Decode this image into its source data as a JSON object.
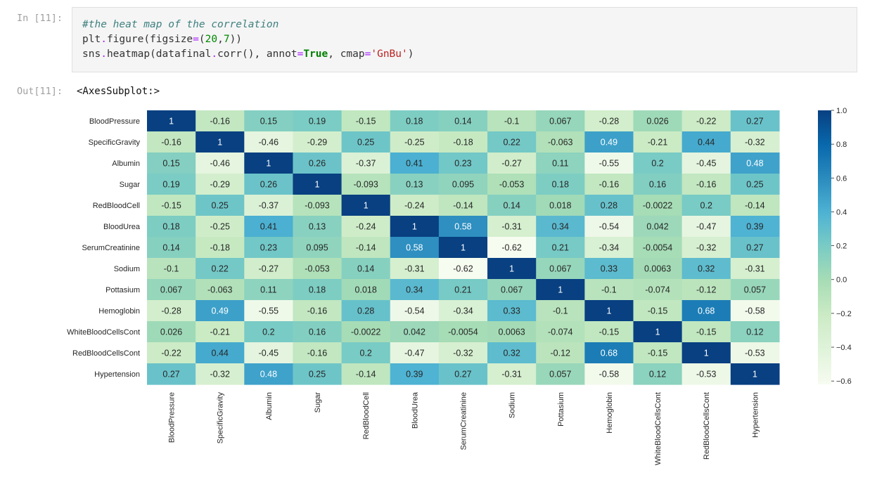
{
  "in_prompt": "In [11]:",
  "out_prompt": "Out[11]:",
  "code": {
    "comment": "#the heat map of the correlation",
    "line2": {
      "obj": "plt",
      "dot": ".",
      "fn": "figure(figsize",
      "eq": "=",
      "open": "(",
      "n1": "20",
      "comma": ",",
      "n2": "7",
      "close": "))"
    },
    "line3": {
      "pre": "sns",
      "dot": ".",
      "fn": "heatmap(datafinal",
      "dot2": ".",
      "mid": "corr(), annot",
      "eq1": "=",
      "kw": "True",
      "mid2": ", cmap",
      "eq2": "=",
      "str": "'GnBu'",
      "end": ")"
    }
  },
  "output_text": "<AxesSubplot:>",
  "chart_data": {
    "type": "heatmap",
    "labels": [
      "BloodPressure",
      "SpecificGravity",
      "Albumin",
      "Sugar",
      "RedBloodCell",
      "BloodUrea",
      "SerumCreatinine",
      "Sodium",
      "Pottasium",
      "Hemoglobin",
      "WhiteBloodCellsCont",
      "RedBloodCellsCont",
      "Hypertension"
    ],
    "annotations": [
      [
        "1",
        "-0.16",
        "0.15",
        "0.19",
        "-0.15",
        "0.18",
        "0.14",
        "-0.1",
        "0.067",
        "-0.28",
        "0.026",
        "-0.22",
        "0.27"
      ],
      [
        "-0.16",
        "1",
        "-0.46",
        "-0.29",
        "0.25",
        "-0.25",
        "-0.18",
        "0.22",
        "-0.063",
        "0.49",
        "-0.21",
        "0.44",
        "-0.32"
      ],
      [
        "0.15",
        "-0.46",
        "1",
        "0.26",
        "-0.37",
        "0.41",
        "0.23",
        "-0.27",
        "0.11",
        "-0.55",
        "0.2",
        "-0.45",
        "0.48"
      ],
      [
        "0.19",
        "-0.29",
        "0.26",
        "1",
        "-0.093",
        "0.13",
        "0.095",
        "-0.053",
        "0.18",
        "-0.16",
        "0.16",
        "-0.16",
        "0.25"
      ],
      [
        "-0.15",
        "0.25",
        "-0.37",
        "-0.093",
        "1",
        "-0.24",
        "-0.14",
        "0.14",
        "0.018",
        "0.28",
        "-0.0022",
        "0.2",
        "-0.14"
      ],
      [
        "0.18",
        "-0.25",
        "0.41",
        "0.13",
        "-0.24",
        "1",
        "0.58",
        "-0.31",
        "0.34",
        "-0.54",
        "0.042",
        "-0.47",
        "0.39"
      ],
      [
        "0.14",
        "-0.18",
        "0.23",
        "0.095",
        "-0.14",
        "0.58",
        "1",
        "-0.62",
        "0.21",
        "-0.34",
        "-0.0054",
        "-0.32",
        "0.27"
      ],
      [
        "-0.1",
        "0.22",
        "-0.27",
        "-0.053",
        "0.14",
        "-0.31",
        "-0.62",
        "1",
        "0.067",
        "0.33",
        "0.0063",
        "0.32",
        "-0.31"
      ],
      [
        "0.067",
        "-0.063",
        "0.11",
        "0.18",
        "0.018",
        "0.34",
        "0.21",
        "0.067",
        "1",
        "-0.1",
        "-0.074",
        "-0.12",
        "0.057"
      ],
      [
        "-0.28",
        "0.49",
        "-0.55",
        "-0.16",
        "0.28",
        "-0.54",
        "-0.34",
        "0.33",
        "-0.1",
        "1",
        "-0.15",
        "0.68",
        "-0.58"
      ],
      [
        "0.026",
        "-0.21",
        "0.2",
        "0.16",
        "-0.0022",
        "0.042",
        "-0.0054",
        "0.0063",
        "-0.074",
        "-0.15",
        "1",
        "-0.15",
        "0.12"
      ],
      [
        "-0.22",
        "0.44",
        "-0.45",
        "-0.16",
        "0.2",
        "-0.47",
        "-0.32",
        "0.32",
        "-0.12",
        "0.68",
        "-0.15",
        "1",
        "-0.53"
      ],
      [
        "0.27",
        "-0.32",
        "0.48",
        "0.25",
        "-0.14",
        "0.39",
        "0.27",
        "-0.31",
        "0.057",
        "-0.58",
        "0.12",
        "-0.53",
        "1"
      ]
    ],
    "colorbar": {
      "min": -0.62,
      "max": 1.0,
      "ticks": [
        "1.0",
        "0.8",
        "0.6",
        "0.4",
        "0.2",
        "0.0",
        "−0.2",
        "−0.4",
        "−0.6"
      ],
      "tick_values": [
        1.0,
        0.8,
        0.6,
        0.4,
        0.2,
        0.0,
        -0.2,
        -0.4,
        -0.6
      ]
    },
    "cmap": "GnBu",
    "colors": [
      "#f7fcf0",
      "#e0f3db",
      "#ccebc5",
      "#a8ddb5",
      "#7bccc4",
      "#4eb3d3",
      "#2b8cbe",
      "#0868ac",
      "#084081"
    ]
  }
}
